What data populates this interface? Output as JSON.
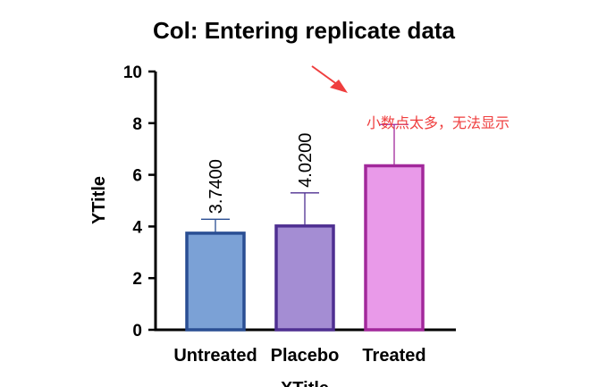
{
  "chart_data": {
    "type": "bar",
    "title": "Col: Entering replicate data",
    "xlabel": "XTitle",
    "ylabel": "YTitle",
    "categories": [
      "Untreated",
      "Placebo",
      "Treated"
    ],
    "values": [
      3.74,
      4.02,
      6.35
    ],
    "error_upper": [
      4.28,
      5.3,
      7.95
    ],
    "data_labels": [
      "3.7400",
      "4.0200",
      ""
    ],
    "ylim": [
      0,
      10
    ],
    "yticks": [
      "0",
      "2",
      "4",
      "6",
      "8",
      "10"
    ],
    "grid": false,
    "legend": "none",
    "colors": {
      "fill": [
        "#7BA1D6",
        "#A48DD3",
        "#E99AE9"
      ],
      "stroke": [
        "#2A4E93",
        "#4E2F91",
        "#A2289B"
      ],
      "error": [
        "#2A4E93",
        "#4E2F91",
        "#A2289B"
      ]
    }
  },
  "annotation": {
    "text": "小数点太多，无法显示",
    "color": "#EF3E3E",
    "icon": "red-arrow-icon"
  }
}
